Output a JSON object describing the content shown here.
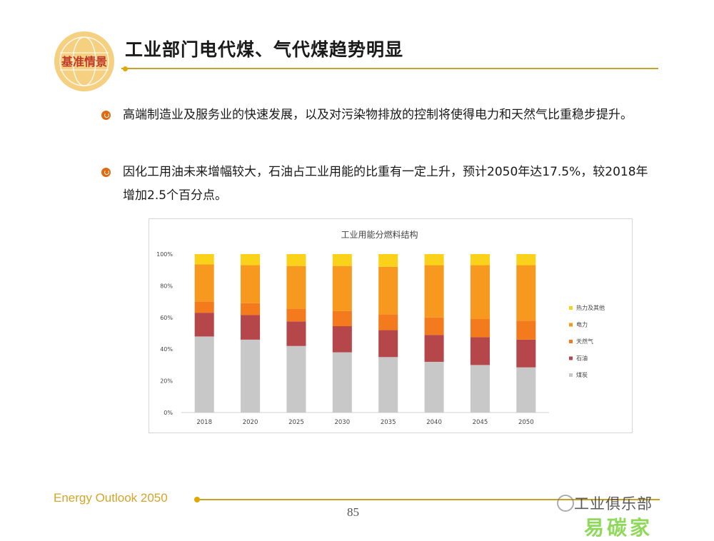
{
  "header": {
    "logo_text": "基准情景",
    "title": "工业部门电代煤、气代煤趋势明显"
  },
  "bullets": [
    {
      "text": "高端制造业及服务业的快速发展，以及对污染物排放的控制将使得电力和天然气比重稳步提升。"
    },
    {
      "text": "因化工用油未来增幅较大，石油占工业用能的比重有一定上升，预计2050年达17.5%，较2018年增加2.5个百分点。"
    }
  ],
  "chart_data": {
    "type": "bar",
    "stacked": true,
    "percent_stacked": true,
    "title": "工业用能分燃料结构",
    "categories": [
      "2018",
      "2020",
      "2025",
      "2030",
      "2035",
      "2040",
      "2045",
      "2050"
    ],
    "y_ticks": [
      "0%",
      "20%",
      "40%",
      "60%",
      "80%",
      "100%"
    ],
    "ylim": [
      0,
      100
    ],
    "legend_position": "right",
    "series": [
      {
        "name": "煤炭",
        "color": "#c8c8c8",
        "values": [
          48,
          46,
          42,
          38,
          35,
          32,
          30,
          28.5
        ]
      },
      {
        "name": "石油",
        "color": "#b5464a",
        "values": [
          15,
          15.5,
          15.5,
          16.5,
          17,
          17,
          17.5,
          17.5
        ]
      },
      {
        "name": "天然气",
        "color": "#f37b1d",
        "values": [
          7,
          7.5,
          8,
          9.5,
          10,
          11,
          11.5,
          12
        ]
      },
      {
        "name": "电力",
        "color": "#f7991f",
        "values": [
          23.5,
          24,
          27,
          28.5,
          30,
          33,
          34,
          35
        ]
      },
      {
        "name": "热力及其他",
        "color": "#fbd21a",
        "values": [
          6.5,
          7,
          7.5,
          7.5,
          8,
          7,
          7,
          7
        ]
      }
    ],
    "legend_order": [
      "热力及其他",
      "电力",
      "天然气",
      "石油",
      "煤炭"
    ]
  },
  "footer": {
    "brand": "Energy Outlook 2050",
    "page_number": "85",
    "watermark": "工业俱乐部",
    "watermark_site": "易碳家"
  }
}
